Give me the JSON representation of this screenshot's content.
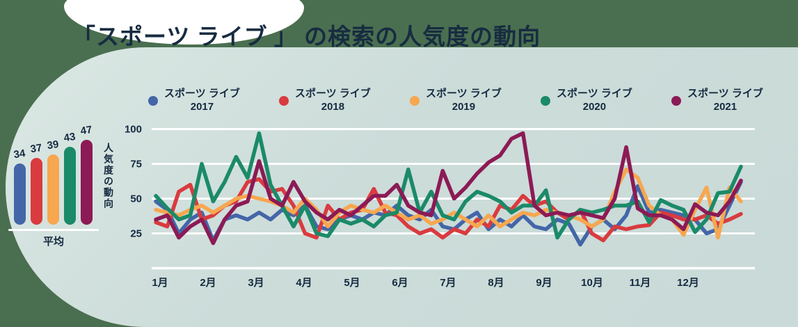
{
  "title": "「スポーツ ライブ 」 の検索の人気度の動向",
  "colors": {
    "page_background": "#4a6f50",
    "panel_background": "#ccdcd9",
    "gridline": "#ffffff",
    "text": "#152a40",
    "title_text": "#172c41"
  },
  "average_chart": {
    "label": "平均",
    "bars": [
      {
        "year": "2017",
        "value": 34,
        "color": "#4466a8"
      },
      {
        "year": "2018",
        "value": 37,
        "color": "#d93b3f"
      },
      {
        "year": "2019",
        "value": 39,
        "color": "#f7a74f"
      },
      {
        "year": "2020",
        "value": 43,
        "color": "#1b8a68"
      },
      {
        "year": "2021",
        "value": 47,
        "color": "#8c1a55"
      }
    ]
  },
  "legend": {
    "items": [
      {
        "line1": "スポーツ ライブ",
        "line2": "2017",
        "color": "#4466a8"
      },
      {
        "line1": "スポーツ ライブ",
        "line2": "2018",
        "color": "#d93b3f"
      },
      {
        "line1": "スポーツ ライブ",
        "line2": "2019",
        "color": "#f7a74f"
      },
      {
        "line1": "スポーツ ライブ",
        "line2": "2020",
        "color": "#1b8a68"
      },
      {
        "line1": "スポーツ ライブ",
        "line2": "2021",
        "color": "#8c1a55"
      }
    ]
  },
  "chart_data": {
    "type": "line",
    "title": "「スポーツ ライブ 」 の検索の人気度の動向",
    "xlabel": "",
    "ylabel": "人気度の動向",
    "ylim": [
      0,
      100
    ],
    "yticks": [
      100,
      75,
      50,
      25
    ],
    "grid": true,
    "legend_position": "top",
    "x_categories_months": [
      "1月",
      "2月",
      "3月",
      "4月",
      "5月",
      "6月",
      "7月",
      "8月",
      "9月",
      "10月",
      "11月",
      "12月"
    ],
    "x_resolution": "52 weekly points spanning January to December",
    "series": [
      {
        "name": "スポーツ ライブ 2017",
        "color": "#4466a8",
        "average": 34,
        "values": [
          48,
          42,
          25,
          35,
          40,
          20,
          35,
          38,
          35,
          40,
          35,
          42,
          38,
          45,
          30,
          28,
          35,
          38,
          35,
          40,
          38,
          45,
          38,
          35,
          42,
          30,
          28,
          35,
          40,
          28,
          35,
          30,
          38,
          30,
          28,
          35,
          32,
          17,
          30,
          35,
          28,
          38,
          59,
          40,
          42,
          40,
          38,
          35,
          25,
          28,
          45,
          62
        ]
      },
      {
        "name": "スポーツ ライブ 2018",
        "color": "#d93b3f",
        "average": 37,
        "values": [
          33,
          30,
          55,
          60,
          35,
          38,
          45,
          48,
          62,
          64,
          55,
          57,
          45,
          25,
          22,
          45,
          35,
          40,
          42,
          57,
          40,
          38,
          30,
          25,
          28,
          22,
          28,
          25,
          35,
          30,
          45,
          42,
          52,
          45,
          48,
          40,
          35,
          42,
          25,
          20,
          30,
          28,
          30,
          31,
          40,
          38,
          35,
          35,
          38,
          32,
          35,
          39
        ]
      },
      {
        "name": "スポーツ ライブ 2019",
        "color": "#f7a74f",
        "average": 39,
        "values": [
          42,
          40,
          38,
          42,
          45,
          40,
          45,
          50,
          52,
          50,
          48,
          45,
          40,
          50,
          42,
          30,
          40,
          45,
          42,
          40,
          45,
          40,
          35,
          38,
          32,
          35,
          40,
          35,
          30,
          38,
          30,
          35,
          40,
          38,
          42,
          40,
          38,
          35,
          30,
          35,
          55,
          71,
          65,
          45,
          38,
          35,
          24,
          42,
          58,
          22,
          58,
          48
        ]
      },
      {
        "name": "スポーツ ライブ 2020",
        "color": "#1b8a68",
        "average": 43,
        "values": [
          52,
          43,
          35,
          38,
          75,
          48,
          62,
          80,
          65,
          97,
          60,
          45,
          30,
          45,
          25,
          23,
          35,
          32,
          35,
          30,
          38,
          40,
          71,
          40,
          55,
          38,
          35,
          48,
          55,
          52,
          48,
          40,
          45,
          45,
          56,
          22,
          35,
          42,
          40,
          42,
          45,
          45,
          48,
          33,
          49,
          45,
          42,
          26,
          35,
          54,
          55,
          73
        ]
      },
      {
        "name": "スポーツ ライブ 2021",
        "color": "#8c1a55",
        "average": 47,
        "values": [
          35,
          38,
          22,
          30,
          35,
          18,
          35,
          45,
          48,
          77,
          50,
          45,
          62,
          48,
          40,
          35,
          42,
          38,
          45,
          52,
          52,
          60,
          45,
          40,
          38,
          70,
          50,
          58,
          68,
          76,
          81,
          93,
          97,
          45,
          38,
          40,
          38,
          40,
          38,
          36,
          50,
          87,
          43,
          38,
          38,
          35,
          28,
          46,
          40,
          38,
          48,
          63
        ]
      }
    ]
  }
}
